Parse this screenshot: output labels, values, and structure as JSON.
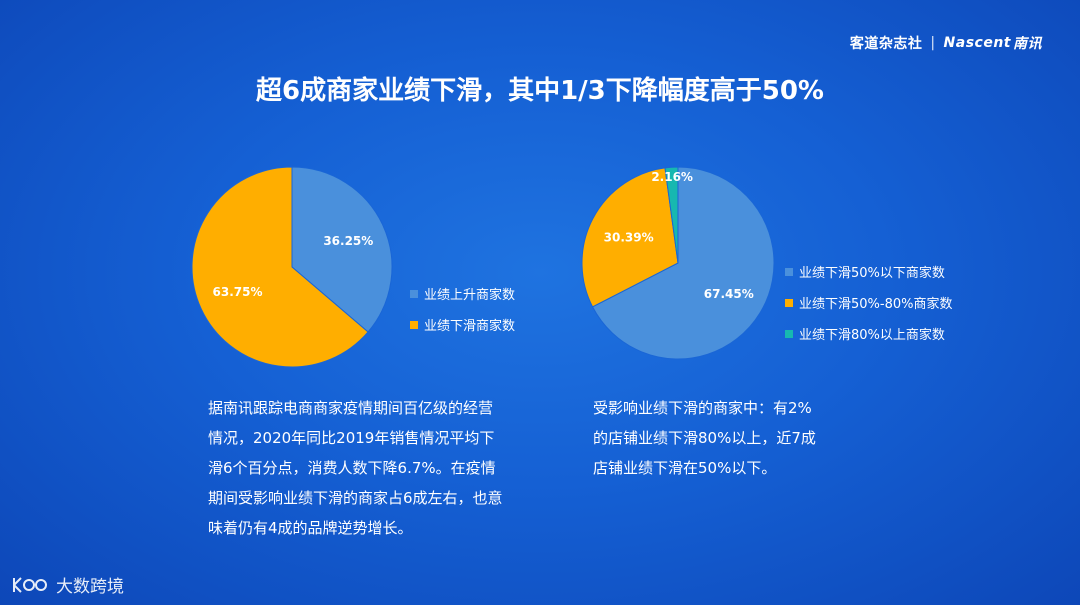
{
  "brand": {
    "cn": "客道杂志社",
    "separator": "|",
    "en": "Nascent",
    "en_cn": "南讯"
  },
  "title": "超6成商家业绩下滑，其中1/3下降幅度高于50%",
  "chart_data": [
    {
      "type": "pie",
      "slices": [
        {
          "name": "业绩上升商家数",
          "value": 36.25,
          "label": "36.25%",
          "color": "#4a90dc"
        },
        {
          "name": "业绩下滑商家数",
          "value": 63.75,
          "label": "63.75%",
          "color": "#ffae00"
        }
      ]
    },
    {
      "type": "pie",
      "slices": [
        {
          "name": "业绩下滑50%以下商家数",
          "value": 67.45,
          "label": "67.45%",
          "color": "#4a90dc"
        },
        {
          "name": "业绩下滑50%-80%商家数",
          "value": 30.39,
          "label": "30.39%",
          "color": "#ffae00"
        },
        {
          "name": "业绩下滑80%以上商家数",
          "value": 2.16,
          "label": "2.16%",
          "color": "#17b8b0"
        }
      ]
    }
  ],
  "paragraph_left": [
    "据南讯跟踪电商商家疫情期间百亿级的经营",
    "情况，2020年同比2019年销售情况平均下",
    "滑6个百分点，消费人数下降6.7%。在疫情",
    "期间受影响业绩下滑的商家占6成左右，也意",
    "味着仍有4成的品牌逆势增长。"
  ],
  "paragraph_right": [
    "受影响业绩下滑的商家中：有2%",
    "的店铺业绩下滑80%以上，近7成",
    "店铺业绩下滑在50%以下。"
  ],
  "footer": {
    "logo_text": "大数跨境",
    "logo_icon": "kudo-logo-icon"
  }
}
